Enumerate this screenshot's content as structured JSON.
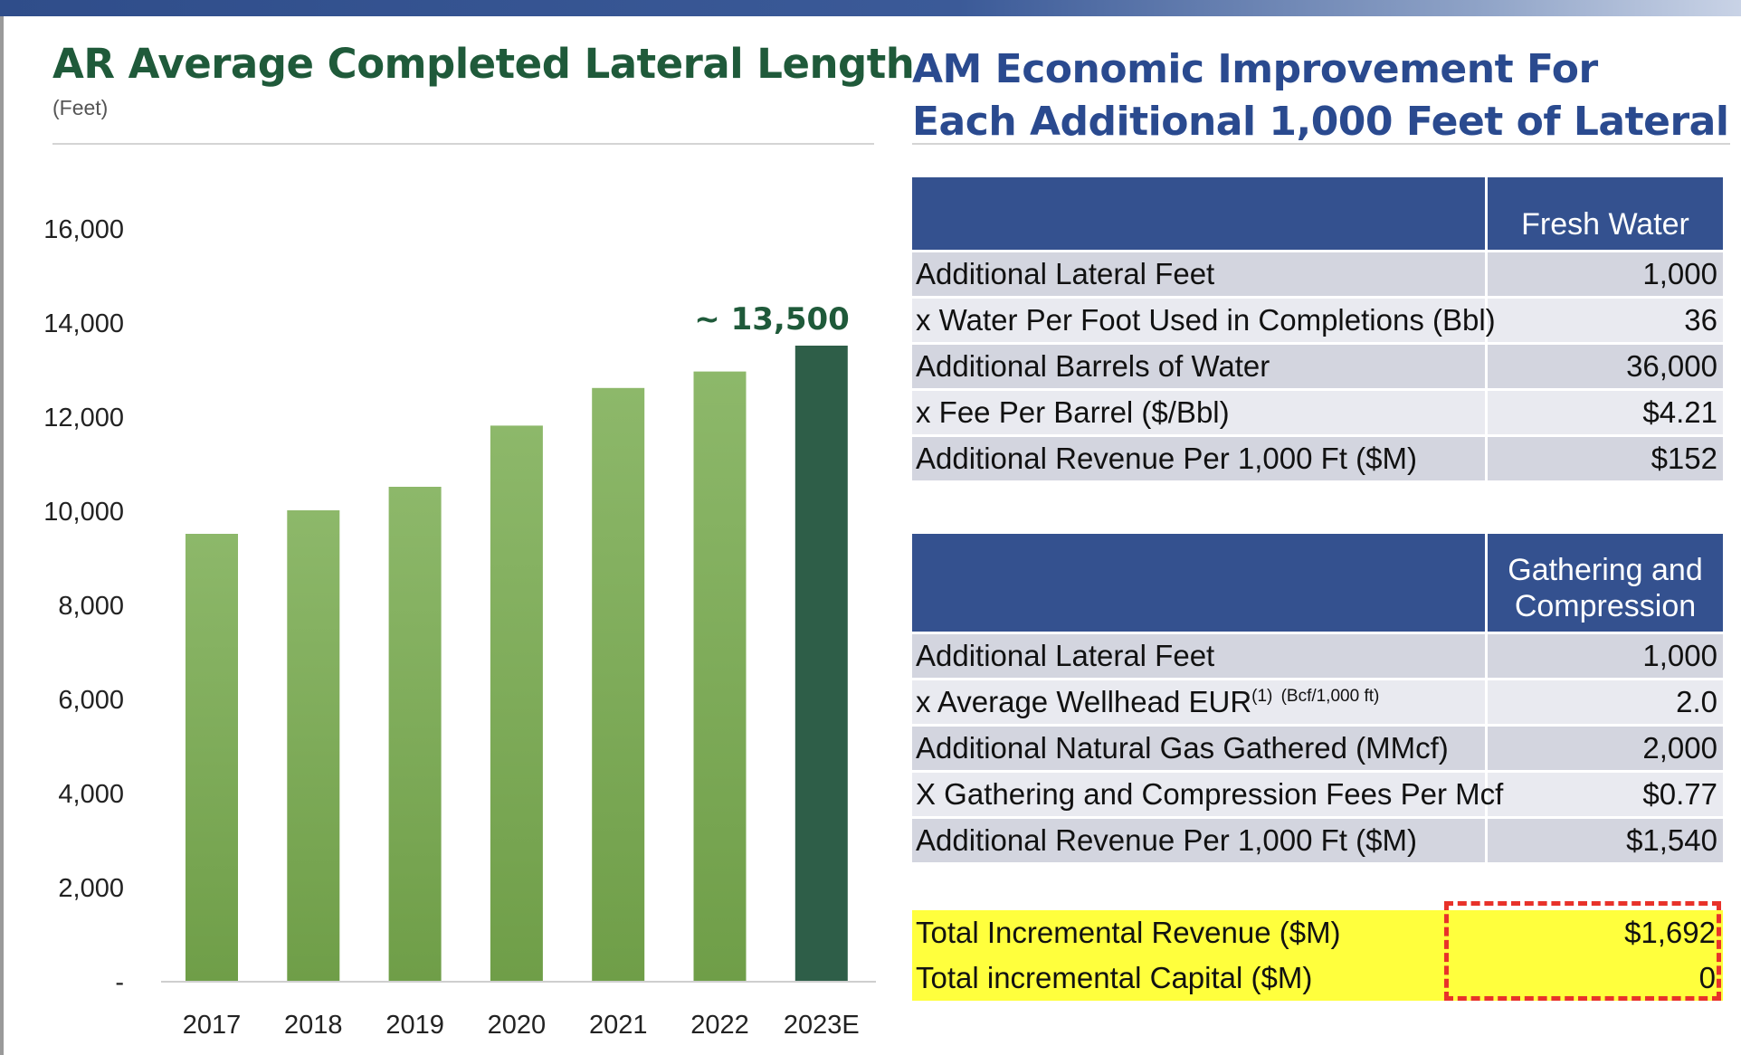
{
  "left_panel": {
    "title": "AR Average Completed Lateral Length",
    "subtitle": "(Feet)"
  },
  "colors": {
    "bar_light_top": "#8db86a",
    "bar_light_bottom": "#6f9e48",
    "bar_dark": "#2e5e48",
    "axis": "#cfcfcf",
    "annotation": "#1f5a3a"
  },
  "chart_data": {
    "type": "bar",
    "categories": [
      "2017",
      "2018",
      "2019",
      "2020",
      "2021",
      "2022",
      "2023E"
    ],
    "values": [
      9500,
      10000,
      10500,
      11800,
      12600,
      12950,
      13500
    ],
    "title": "AR Average Completed Lateral Length",
    "ylabel": "(Feet)",
    "ylim": [
      0,
      16000
    ],
    "yticks": [
      0,
      2000,
      4000,
      6000,
      8000,
      10000,
      12000,
      14000,
      16000
    ],
    "ytick_labels": [
      "-",
      "2,000",
      "4,000",
      "6,000",
      "8,000",
      "10,000",
      "12,000",
      "14,000",
      "16,000"
    ],
    "highlight_index": 6,
    "annotation": {
      "index": 6,
      "text": "~ 13,500"
    },
    "grid": false,
    "legend": "none"
  },
  "right_panel": {
    "title_line1": "AM Economic Improvement For",
    "title_line2": "Each Additional 1,000 Feet of Lateral",
    "fresh_water": {
      "header": "Fresh Water",
      "rows": [
        {
          "label": "Additional Lateral Feet",
          "value": "1,000"
        },
        {
          "label": "x Water Per Foot Used in Completions (Bbl)",
          "value": "36"
        },
        {
          "label": "Additional Barrels of Water",
          "value": "36,000"
        },
        {
          "label": "x Fee Per Barrel ($/Bbl)",
          "value": "$4.21"
        },
        {
          "label": "Additional Revenue Per 1,000 Ft ($M)",
          "value": "$152"
        }
      ]
    },
    "gathering": {
      "header_line1": "Gathering and",
      "header_line2": "Compression",
      "rows": [
        {
          "label": "Additional Lateral Feet",
          "value": "1,000"
        },
        {
          "label": "x Average Wellhead EUR",
          "note": "(1)",
          "unit": "(Bcf/1,000 ft)",
          "value": "2.0"
        },
        {
          "label": "Additional Natural Gas Gathered (MMcf)",
          "value": "2,000"
        },
        {
          "label": "X Gathering and Compression Fees Per Mcf",
          "value": "$0.77"
        },
        {
          "label": "Additional Revenue Per 1,000 Ft ($M)",
          "value": "$1,540"
        }
      ]
    },
    "totals": [
      {
        "label": "Total Incremental Revenue ($M)",
        "value": "$1,692"
      },
      {
        "label": "Total incremental Capital ($M)",
        "value": "0"
      }
    ]
  }
}
